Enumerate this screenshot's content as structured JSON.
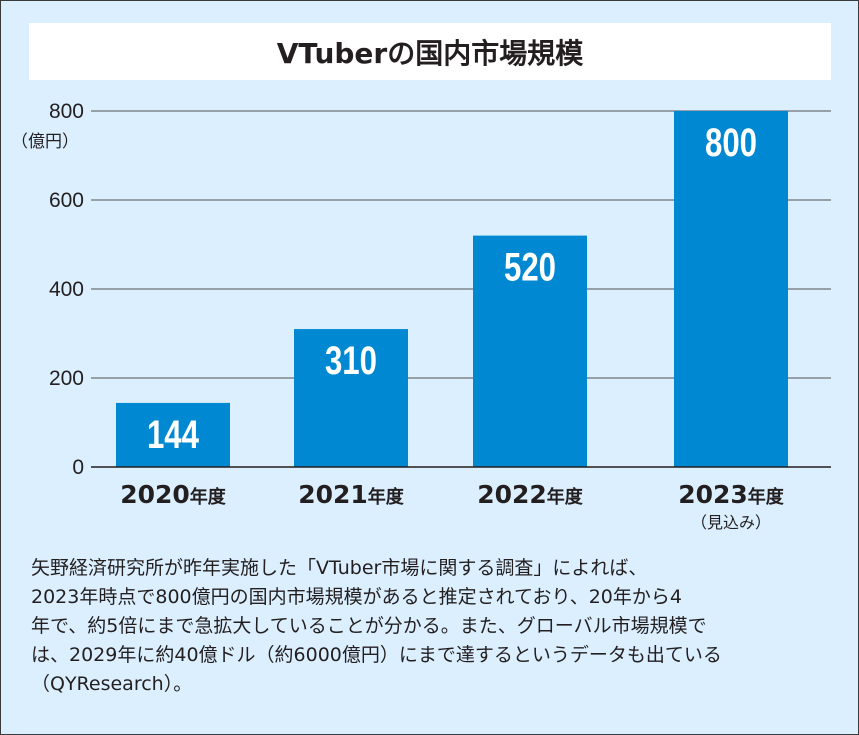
{
  "chart_data": {
    "type": "bar",
    "title": "VTuberの国内市場規模",
    "categories": [
      "2020",
      "2021",
      "2022",
      "2023"
    ],
    "category_suffix": "年度",
    "category_notes": [
      "",
      "",
      "",
      "（見込み）"
    ],
    "values": [
      144,
      310,
      520,
      800
    ],
    "data_labels": [
      "144",
      "310",
      "520",
      "800"
    ],
    "xlabel": "",
    "ylabel": "（億円）",
    "ylim": [
      0,
      800
    ],
    "yticks": [
      0,
      200,
      400,
      600,
      800
    ],
    "ytick_labels": [
      "0",
      "200",
      "400",
      "600",
      "800"
    ],
    "grid": true,
    "bar_color": "#0089d2",
    "background_color": "#dcefff"
  },
  "caption": {
    "lines": [
      "矢野経済研究所が昨年実施した「VTuber市場に関する調査」によれば、",
      "2023年時点で800億円の国内市場規模があると推定されており、20年から4",
      "年で、約5倍にまで急拡大していることが分かる。また、グローバル市場規模で",
      "は、2029年に約40億ドル（約6000億円）にまで達するというデータも出ている",
      "（QYResearch）。"
    ]
  }
}
